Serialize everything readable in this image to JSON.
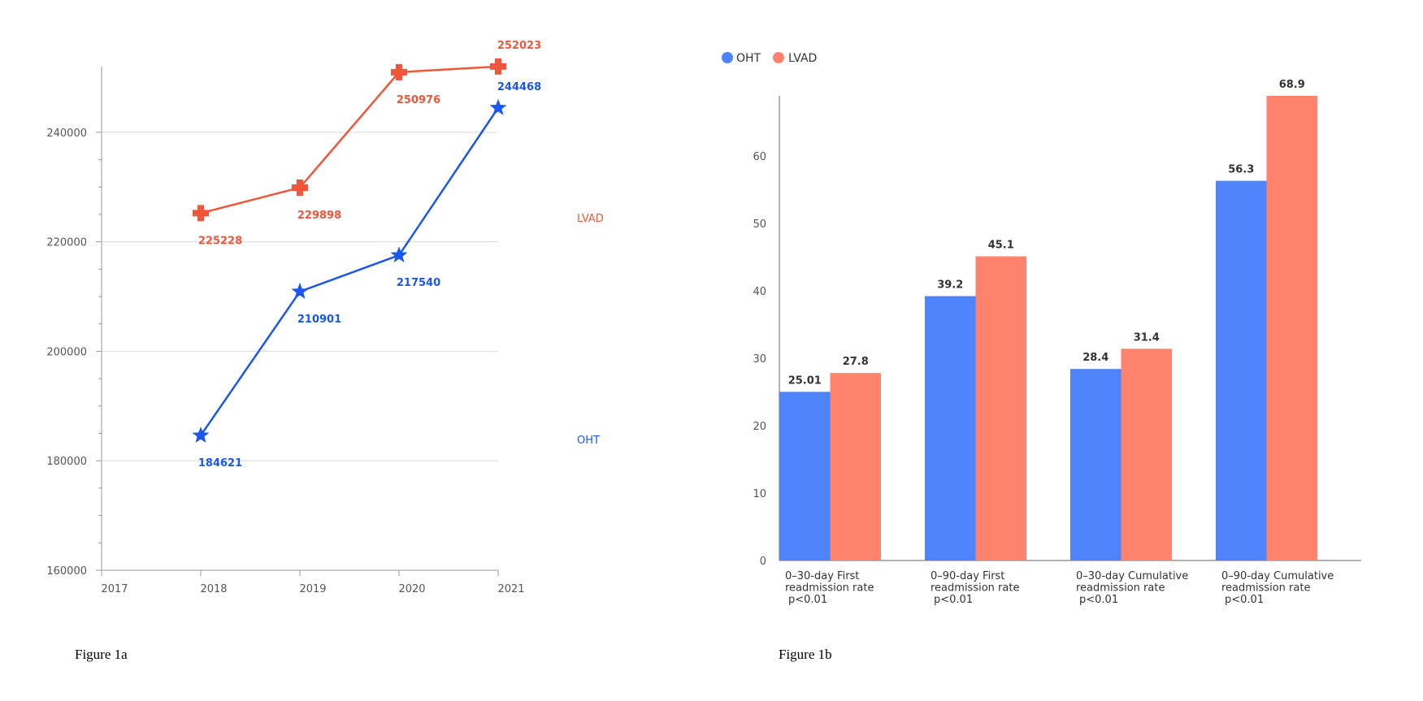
{
  "colors": {
    "oht_line": "#1a56f0",
    "lvad_line": "#f2553a",
    "oht_bar": "#4f83fc",
    "lvad_bar": "#ff826d",
    "grid": "#d9d9d9",
    "axis": "#999999"
  },
  "captions": {
    "fig_a": "Figure 1a",
    "fig_b": "Figure 1b"
  },
  "chart_data": [
    {
      "type": "line",
      "title": "",
      "x_ticks": [
        "2017",
        "2018",
        "2019",
        "2020",
        "2021"
      ],
      "y_ticks": [
        "160000",
        "180000",
        "200000",
        "220000",
        "240000"
      ],
      "ylim": [
        160000,
        252000
      ],
      "grid": true,
      "series": [
        {
          "name": "LVAD",
          "marker": "cross",
          "x": [
            "2018",
            "2019",
            "2020",
            "2021"
          ],
          "values": [
            225228,
            229898,
            250976,
            252023
          ]
        },
        {
          "name": "OHT",
          "marker": "star",
          "x": [
            "2018",
            "2019",
            "2020",
            "2021"
          ],
          "values": [
            184621,
            210901,
            217540,
            244468
          ]
        }
      ],
      "series_labels": {
        "lvad": "LVAD",
        "oht": "OHT"
      }
    },
    {
      "type": "bar",
      "title": "",
      "legend": [
        {
          "name": "OHT"
        },
        {
          "name": "LVAD"
        }
      ],
      "categories": [
        [
          "0–30-day First",
          "readmission rate",
          "p<0.01"
        ],
        [
          "0–90-day First",
          "readmission rate",
          "p<0.01"
        ],
        [
          "0–30-day Cumulative",
          "readmission rate",
          "p<0.01"
        ],
        [
          "0–90-day Cumulative",
          "readmission rate",
          "p<0.01"
        ]
      ],
      "y_ticks": [
        "0",
        "10",
        "20",
        "30",
        "40",
        "50",
        "60"
      ],
      "ylim": [
        0,
        68.9
      ],
      "series": [
        {
          "name": "OHT",
          "values": [
            25.01,
            39.2,
            28.4,
            56.3
          ]
        },
        {
          "name": "LVAD",
          "values": [
            27.8,
            45.1,
            31.4,
            68.9
          ]
        }
      ]
    }
  ]
}
